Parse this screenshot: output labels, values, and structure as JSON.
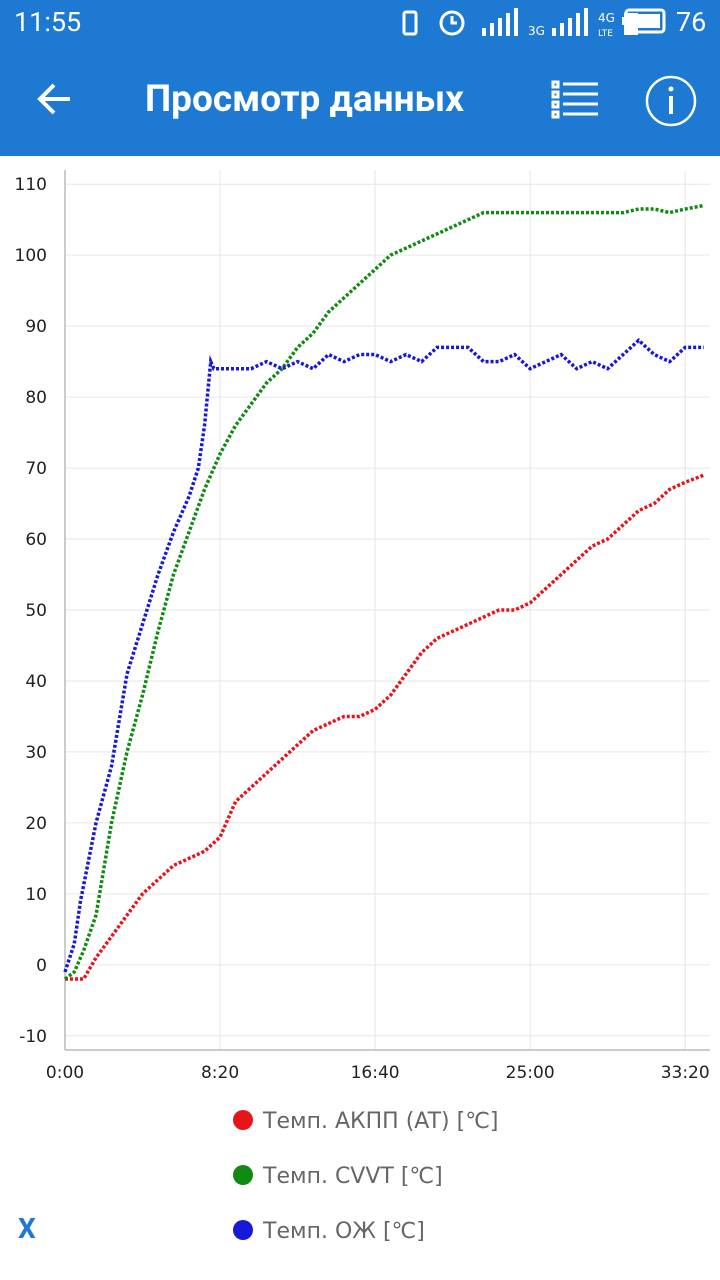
{
  "status_bar": {
    "time": "11:55",
    "network_1": "3G",
    "network_2": "4G",
    "network_3": "LTE",
    "battery": "76"
  },
  "header": {
    "title": "Просмотр данных"
  },
  "chart_data": {
    "type": "line",
    "xlim": [
      0,
      2080
    ],
    "ylim": [
      -12,
      112
    ],
    "xticks": [
      {
        "value": 0,
        "label": "0:00"
      },
      {
        "value": 500,
        "label": "8:20"
      },
      {
        "value": 1000,
        "label": "16:40"
      },
      {
        "value": 1500,
        "label": "25:00"
      },
      {
        "value": 2000,
        "label": "33:20"
      }
    ],
    "yticks": [
      -10,
      0,
      10,
      20,
      30,
      40,
      50,
      60,
      70,
      80,
      90,
      100,
      110
    ],
    "grid": true,
    "series": [
      {
        "name": "Темп. АКПП (AT) [℃]",
        "color": "#e8141b",
        "x": [
          0,
          60,
          100,
          150,
          200,
          250,
          300,
          350,
          400,
          450,
          500,
          550,
          600,
          650,
          700,
          750,
          800,
          850,
          900,
          950,
          1000,
          1050,
          1100,
          1150,
          1200,
          1250,
          1300,
          1350,
          1400,
          1450,
          1500,
          1550,
          1600,
          1650,
          1700,
          1750,
          1800,
          1850,
          1900,
          1950,
          2000,
          2060
        ],
        "values": [
          -2,
          -2,
          1,
          4,
          7,
          10,
          12,
          14,
          15,
          16,
          18,
          23,
          25,
          27,
          29,
          31,
          33,
          34,
          35,
          35,
          36,
          38,
          41,
          44,
          46,
          47,
          48,
          49,
          50,
          50,
          51,
          53,
          55,
          57,
          59,
          60,
          62,
          64,
          65,
          67,
          68,
          69
        ]
      },
      {
        "name": "Темп. CVVT [℃]",
        "color": "#118a11",
        "x": [
          0,
          30,
          60,
          100,
          150,
          200,
          250,
          300,
          350,
          400,
          450,
          500,
          550,
          600,
          650,
          700,
          750,
          800,
          850,
          900,
          950,
          1000,
          1050,
          1100,
          1150,
          1200,
          1250,
          1300,
          1350,
          1400,
          1500,
          1600,
          1700,
          1800,
          1850,
          1900,
          1950,
          2000,
          2060
        ],
        "values": [
          -2,
          -1,
          2,
          7,
          20,
          30,
          38,
          47,
          55,
          61,
          67,
          72,
          76,
          79,
          82,
          84,
          87,
          89,
          92,
          94,
          96,
          98,
          100,
          101,
          102,
          103,
          104,
          105,
          106,
          106,
          106,
          106,
          106,
          106,
          106.5,
          106.5,
          106,
          106.5,
          107
        ]
      },
      {
        "name": "Темп. ОЖ [℃]",
        "color": "#1818d8",
        "x": [
          0,
          30,
          50,
          100,
          150,
          200,
          250,
          300,
          350,
          400,
          430,
          450,
          470,
          480,
          550,
          600,
          650,
          700,
          750,
          800,
          850,
          900,
          950,
          1000,
          1050,
          1100,
          1150,
          1200,
          1250,
          1300,
          1350,
          1400,
          1450,
          1500,
          1550,
          1600,
          1650,
          1700,
          1750,
          1800,
          1850,
          1900,
          1950,
          2000,
          2060
        ],
        "values": [
          -1,
          3,
          9,
          20,
          28,
          41,
          48,
          55,
          61,
          66,
          70,
          76,
          85,
          84,
          84,
          84,
          85,
          84,
          85,
          84,
          86,
          85,
          86,
          86,
          85,
          86,
          85,
          87,
          87,
          87,
          85,
          85,
          86,
          84,
          85,
          86,
          84,
          85,
          84,
          86,
          88,
          86,
          85,
          87,
          87
        ]
      }
    ]
  },
  "footer": {
    "button": "X"
  }
}
